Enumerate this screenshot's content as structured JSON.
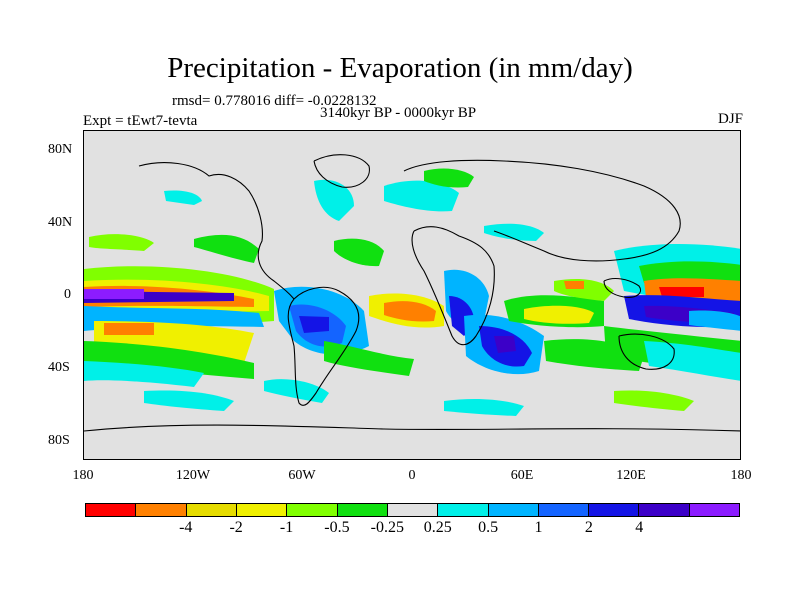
{
  "title": "Precipitation - Evaporation (in mm/day)",
  "stats": "rmsd= 0.778016 diff= -0.0228132",
  "period": "3140kyr BP - 0000kyr BP",
  "experiment": "Expt = tEwt7-tevta",
  "season": "DJF",
  "y_ticks": [
    "80N",
    "40N",
    "0",
    "40S",
    "80S"
  ],
  "x_ticks": [
    "180",
    "120W",
    "60W",
    "0",
    "60E",
    "120E",
    "180"
  ],
  "colorbar": {
    "colors": [
      "#ff0000",
      "#ff8000",
      "#e6dc00",
      "#f0f000",
      "#80ff00",
      "#10e010",
      "#e1e1e1",
      "#00f0e8",
      "#00b4ff",
      "#1464ff",
      "#1414e6",
      "#3c00c8",
      "#8c1cff"
    ],
    "labels": [
      "-4",
      "-2",
      "-1",
      "-0.5",
      "-0.25",
      "0.25",
      "0.5",
      "1",
      "2",
      "4"
    ]
  }
}
